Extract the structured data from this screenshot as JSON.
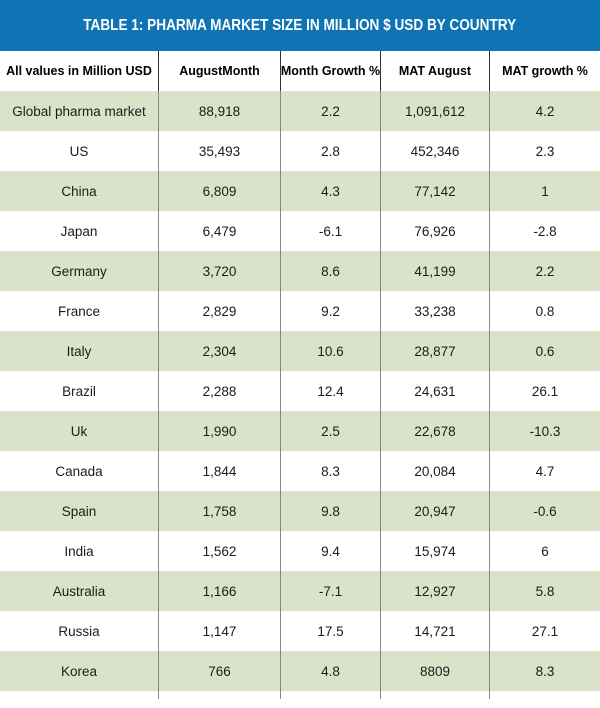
{
  "colors": {
    "header_blue": "#0f73b4",
    "row_green": "#dae3c9",
    "divider_gray": "#888888",
    "header_divider": "#333333",
    "title_text": "#ffffff",
    "body_text": "#1b1b1b"
  },
  "chart_data": {
    "type": "table",
    "title": "TABLE 1: PHARMA MARKET SIZE IN MILLION $ USD BY COUNTRY",
    "columns": [
      "All values in Million USD",
      "AugustMonth",
      "Month Growth %",
      "MAT August",
      "MAT growth %"
    ],
    "rows": [
      [
        "Global pharma market",
        "88,918",
        "2.2",
        "1,091,612",
        "4.2"
      ],
      [
        "US",
        "35,493",
        "2.8",
        "452,346",
        "2.3"
      ],
      [
        "China",
        "6,809",
        "4.3",
        "77,142",
        "1"
      ],
      [
        "Japan",
        "6,479",
        "-6.1",
        "76,926",
        "-2.8"
      ],
      [
        "Germany",
        "3,720",
        "8.6",
        "41,199",
        "2.2"
      ],
      [
        "France",
        "2,829",
        "9.2",
        "33,238",
        "0.8"
      ],
      [
        "Italy",
        "2,304",
        "10.6",
        "28,877",
        "0.6"
      ],
      [
        "Brazil",
        "2,288",
        "12.4",
        "24,631",
        "26.1"
      ],
      [
        "Uk",
        "1,990",
        "2.5",
        "22,678",
        "-10.3"
      ],
      [
        "Canada",
        "1,844",
        "8.3",
        "20,084",
        "4.7"
      ],
      [
        "Spain",
        "1,758",
        "9.8",
        "20,947",
        "-0.6"
      ],
      [
        "India",
        "1,562",
        "9.4",
        "15,974",
        "6"
      ],
      [
        "Australia",
        "1,166",
        "-7.1",
        "12,927",
        "5.8"
      ],
      [
        "Russia",
        "1,147",
        "17.5",
        "14,721",
        "27.1"
      ],
      [
        "Korea",
        "766",
        "4.8",
        "8809",
        "8.3"
      ]
    ]
  }
}
